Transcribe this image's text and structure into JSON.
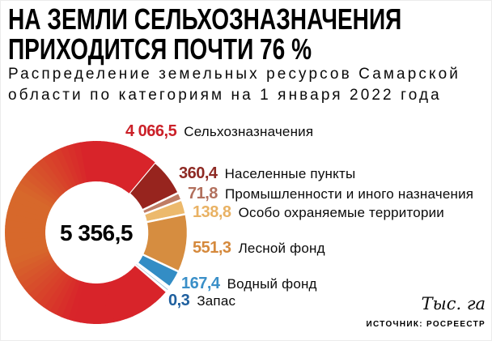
{
  "header": {
    "title_line1": "НА ЗЕМЛИ СЕЛЬХОЗНАЗНАЧЕНИЯ",
    "title_line2": "ПРИХОДИТСЯ ПОЧТИ 76 %",
    "subtitle_line1": "Распределение земельных ресурсов Самарской",
    "subtitle_line2": "области по категориям на 1 января 2022 года"
  },
  "chart_data": {
    "type": "pie",
    "variant": "donut",
    "title": "НА ЗЕМЛИ СЕЛЬХОЗНАЗНАЧЕНИЯ ПРИХОДИТСЯ ПОЧТИ 76 %",
    "subtitle": "Распределение земельных ресурсов Самарской области по категориям на 1 января 2022 года",
    "units": "Тыс. га",
    "total": 5356.5,
    "total_label": "5 356,5",
    "legend_position": "right",
    "items": [
      {
        "label": "Сельхозназначения",
        "value": 4066.5,
        "value_label": "4 066,5",
        "color": "#d8242a",
        "color_mid": "#d7682b",
        "number_color": "#cb2129"
      },
      {
        "label": "Населенные пункты",
        "value": 360.4,
        "value_label": "360,4",
        "color": "#97241e",
        "number_color": "#8e2a24"
      },
      {
        "label": "Промышленности и иного назначения",
        "value": 71.8,
        "value_label": "71,8",
        "color": "#bf7c64",
        "number_color": "#b2705d"
      },
      {
        "label": "Особо охраняемые территории",
        "value": 138.8,
        "value_label": "138,8",
        "color": "#ecb96c",
        "number_color": "#e9b264"
      },
      {
        "label": "Лесной фонд",
        "value": 551.3,
        "value_label": "551,3",
        "color": "#d68d40",
        "number_color": "#d5893c"
      },
      {
        "label": "Водный фонд",
        "value": 167.4,
        "value_label": "167,4",
        "color": "#338dc5",
        "number_color": "#3a8fc8"
      },
      {
        "label": "Запас",
        "value": 0.3,
        "value_label": "0,3",
        "color": "#9ec4de",
        "number_color": "#1e5f9e"
      }
    ]
  },
  "footer": {
    "units_label": "Тыс. га",
    "source": "ИСТОЧНИК: РОСРЕЕСТР"
  }
}
